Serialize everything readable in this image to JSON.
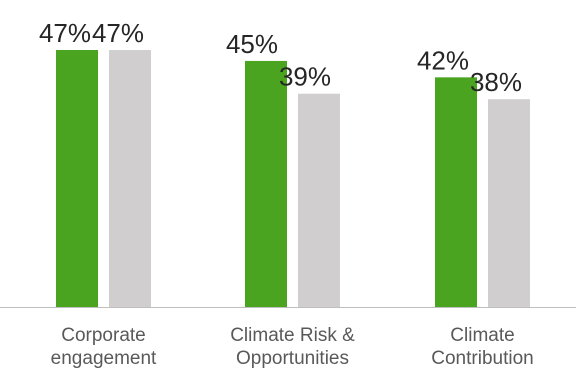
{
  "chart_data": {
    "type": "bar",
    "categories": [
      [
        "Corporate",
        "engagement"
      ],
      [
        "Climate Risk &",
        "Opportunities"
      ],
      [
        "Climate",
        "Contribution"
      ]
    ],
    "series": [
      {
        "color": "#4ba420",
        "values": [
          47,
          45,
          42
        ]
      },
      {
        "color": "#d0cece",
        "values": [
          47,
          39,
          38
        ]
      }
    ],
    "value_labels": [
      [
        "47%",
        "47%"
      ],
      [
        "45%",
        "39%"
      ],
      [
        "42%",
        "38%"
      ]
    ],
    "ylim": [
      0,
      50
    ],
    "grid": false,
    "legend": "none",
    "axis_color": "#bfbfbf"
  }
}
